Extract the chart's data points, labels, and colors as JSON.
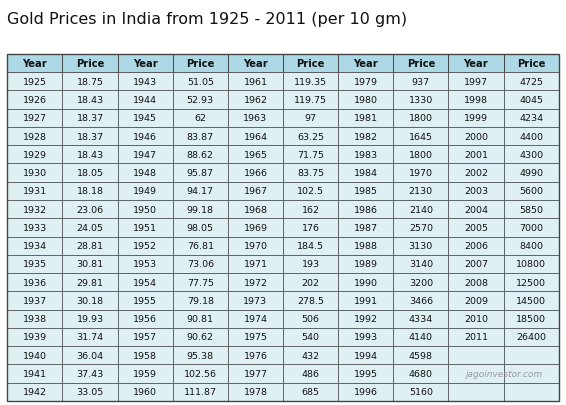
{
  "title": "Gold Prices in India from 1925 - 2011 (per 10 gm)",
  "title_fontsize": 11.5,
  "header_bg": "#add8e6",
  "row_bg": "#dff0f5",
  "border_color": "#444444",
  "header_text_color": "#111111",
  "cell_text_color": "#111111",
  "watermark": "jagoinvestor.com",
  "columns": [
    "Year",
    "Price",
    "Year",
    "Price",
    "Year",
    "Price",
    "Year",
    "Price",
    "Year",
    "Price"
  ],
  "data": [
    [
      1925,
      "18.75",
      1943,
      "51.05",
      1961,
      "119.35",
      1979,
      "937",
      1997,
      "4725"
    ],
    [
      1926,
      "18.43",
      1944,
      "52.93",
      1962,
      "119.75",
      1980,
      "1330",
      1998,
      "4045"
    ],
    [
      1927,
      "18.37",
      1945,
      "62",
      1963,
      "97",
      1981,
      "1800",
      1999,
      "4234"
    ],
    [
      1928,
      "18.37",
      1946,
      "83.87",
      1964,
      "63.25",
      1982,
      "1645",
      2000,
      "4400"
    ],
    [
      1929,
      "18.43",
      1947,
      "88.62",
      1965,
      "71.75",
      1983,
      "1800",
      2001,
      "4300"
    ],
    [
      1930,
      "18.05",
      1948,
      "95.87",
      1966,
      "83.75",
      1984,
      "1970",
      2002,
      "4990"
    ],
    [
      1931,
      "18.18",
      1949,
      "94.17",
      1967,
      "102.5",
      1985,
      "2130",
      2003,
      "5600"
    ],
    [
      1932,
      "23.06",
      1950,
      "99.18",
      1968,
      "162",
      1986,
      "2140",
      2004,
      "5850"
    ],
    [
      1933,
      "24.05",
      1951,
      "98.05",
      1969,
      "176",
      1987,
      "2570",
      2005,
      "7000"
    ],
    [
      1934,
      "28.81",
      1952,
      "76.81",
      1970,
      "184.5",
      1988,
      "3130",
      2006,
      "8400"
    ],
    [
      1935,
      "30.81",
      1953,
      "73.06",
      1971,
      "193",
      1989,
      "3140",
      2007,
      "10800"
    ],
    [
      1936,
      "29.81",
      1954,
      "77.75",
      1972,
      "202",
      1990,
      "3200",
      2008,
      "12500"
    ],
    [
      1937,
      "30.18",
      1955,
      "79.18",
      1973,
      "278.5",
      1991,
      "3466",
      2009,
      "14500"
    ],
    [
      1938,
      "19.93",
      1956,
      "90.81",
      1974,
      "506",
      1992,
      "4334",
      2010,
      "18500"
    ],
    [
      1939,
      "31.74",
      1957,
      "90.62",
      1975,
      "540",
      1993,
      "4140",
      2011,
      "26400"
    ],
    [
      1940,
      "36.04",
      1958,
      "95.38",
      1976,
      "432",
      1994,
      "4598",
      null,
      null
    ],
    [
      1941,
      "37.43",
      1959,
      "102.56",
      1977,
      "486",
      1995,
      "4680",
      null,
      null
    ],
    [
      1942,
      "33.05",
      1960,
      "111.87",
      1978,
      "685",
      1996,
      "5160",
      null,
      null
    ]
  ],
  "n_rows": 18,
  "n_cols": 10
}
